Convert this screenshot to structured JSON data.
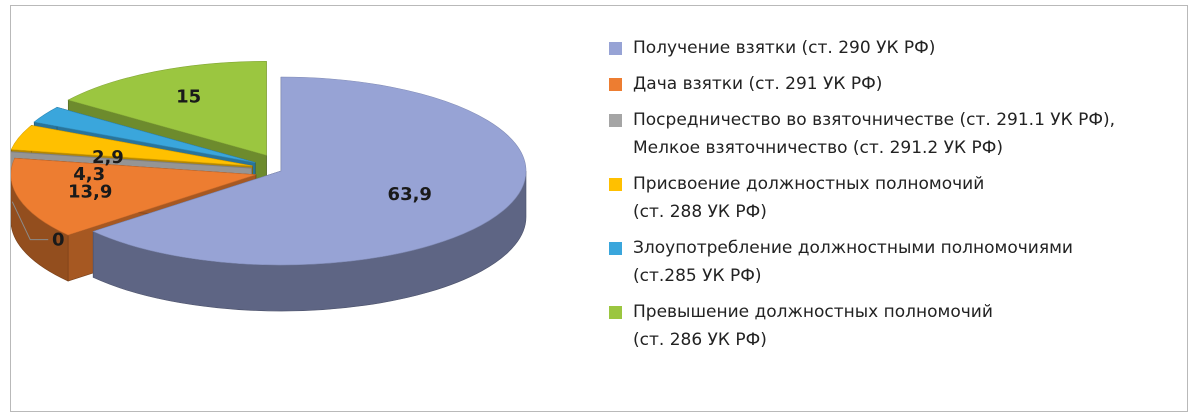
{
  "chart_data": {
    "type": "pie",
    "variant": "3d-exploded",
    "title": "",
    "legend_position": "right",
    "series": [
      {
        "name": "",
        "slices": [
          {
            "key": "bribe-taking",
            "label_lines": [
              "Получение взятки (ст. 290 УК РФ)"
            ],
            "value": 63.9,
            "value_label": "63,9",
            "color": "#97a3d5"
          },
          {
            "key": "bribe-giving",
            "label_lines": [
              "Дача взятки (ст. 291 УК РФ)"
            ],
            "value": 13.9,
            "value_label": "13,9",
            "color": "#ed7d31"
          },
          {
            "key": "mediation",
            "label_lines": [
              "Посредничество во взяточничестве (ст. 291.1 УК РФ),",
              "Мелкое взяточничество (ст. 291.2 УК РФ)"
            ],
            "value": 0,
            "value_label": "0",
            "color": "#a5a5a5"
          },
          {
            "key": "appropriation",
            "label_lines": [
              "Присвоение должностных полномочий",
              "(ст. 288 УК РФ)"
            ],
            "value": 4.3,
            "value_label": "4,3",
            "color": "#ffc000"
          },
          {
            "key": "abuse",
            "label_lines": [
              "Злоупотребление должностными полномочиями",
              "(ст.285 УК РФ)"
            ],
            "value": 2.9,
            "value_label": "2,9",
            "color": "#3aa6dc"
          },
          {
            "key": "excess",
            "label_lines": [
              "Превышение должностных полномочий",
              "(ст. 286 УК РФ)"
            ],
            "value": 15,
            "value_label": "15",
            "color": "#9bc640"
          }
        ]
      }
    ]
  }
}
